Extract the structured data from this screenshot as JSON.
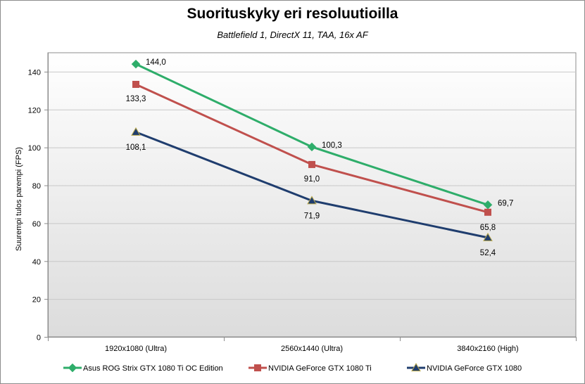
{
  "chart_data": {
    "type": "line",
    "title": "Suorituskyky eri resoluutioilla",
    "subtitle": "Battlefield 1, DirectX 11, TAA, 16x AF",
    "xlabel": "",
    "ylabel": "Suurempi tulos parempi (FPS)",
    "ylim": [
      0,
      150
    ],
    "yticks": [
      0,
      20,
      40,
      60,
      80,
      100,
      120,
      140
    ],
    "grid": true,
    "legend_position": "bottom",
    "categories": [
      "1920x1080 (Ultra)",
      "2560x1440 (Ultra)",
      "3840x2160 (High)"
    ],
    "series": [
      {
        "name": "Asus ROG Strix GTX 1080 Ti OC Edition",
        "values": [
          144.0,
          100.3,
          69.7
        ],
        "labels": [
          "144,0",
          "100,3",
          "69,7"
        ],
        "color": "#2ead6a",
        "marker": "diamond"
      },
      {
        "name": "NVIDIA GeForce GTX 1080 Ti",
        "values": [
          133.3,
          91.0,
          65.8
        ],
        "labels": [
          "133,3",
          "91,0",
          "65,8"
        ],
        "color": "#c0504d",
        "marker": "square"
      },
      {
        "name": "NVIDIA GeForce GTX 1080",
        "values": [
          108.1,
          71.9,
          52.4
        ],
        "labels": [
          "108,1",
          "71,9",
          "52,4"
        ],
        "color": "#1f3d6e",
        "marker": "triangle"
      }
    ]
  }
}
